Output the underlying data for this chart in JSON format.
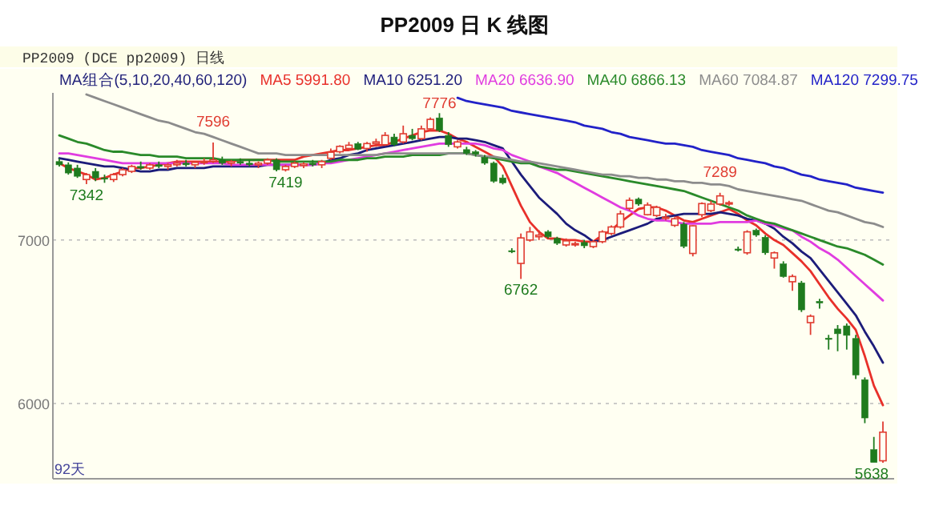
{
  "chart_data": {
    "type": "candlestick",
    "title": "PP2009 日 K 线图",
    "subtitle": "PP2009  (DCE pp2009)  日线",
    "legend_title": "MA组合(5,10,20,40,60,120)",
    "legend": "top",
    "grid": "y",
    "categories": [
      null,
      null,
      null,
      null,
      null,
      null,
      null,
      null,
      null,
      null,
      null,
      null,
      null,
      null,
      null,
      null,
      null,
      null,
      null,
      null,
      null,
      null,
      null,
      null,
      null,
      null,
      null,
      null,
      null,
      null,
      null,
      null,
      null,
      null,
      null,
      null,
      null,
      null,
      null,
      null,
      null,
      null,
      null,
      null,
      null,
      null,
      null,
      null,
      null,
      null,
      null,
      null,
      null,
      null,
      null,
      null,
      null,
      null,
      null,
      null,
      null,
      null,
      null,
      null,
      null,
      null,
      null,
      null,
      null,
      null,
      null,
      null,
      null,
      null,
      null,
      null,
      null,
      null,
      null,
      null,
      null,
      null,
      null,
      null,
      null,
      null,
      null,
      null,
      null,
      null,
      null,
      null
    ],
    "ohlc": [
      [
        7480,
        7500,
        7450,
        7460
      ],
      [
        7460,
        7475,
        7400,
        7410
      ],
      [
        7440,
        7460,
        7380,
        7390
      ],
      [
        7370,
        7410,
        7342,
        7400
      ],
      [
        7420,
        7440,
        7360,
        7380
      ],
      [
        7380,
        7400,
        7350,
        7375
      ],
      [
        7370,
        7410,
        7355,
        7400
      ],
      [
        7400,
        7440,
        7390,
        7430
      ],
      [
        7420,
        7460,
        7410,
        7450
      ],
      [
        7450,
        7480,
        7430,
        7440
      ],
      [
        7440,
        7470,
        7430,
        7460
      ],
      [
        7460,
        7480,
        7440,
        7450
      ],
      [
        7450,
        7470,
        7430,
        7460
      ],
      [
        7460,
        7490,
        7450,
        7470
      ],
      [
        7470,
        7490,
        7450,
        7460
      ],
      [
        7460,
        7480,
        7440,
        7475
      ],
      [
        7475,
        7500,
        7460,
        7480
      ],
      [
        7480,
        7596,
        7470,
        7490
      ],
      [
        7490,
        7510,
        7460,
        7470
      ],
      [
        7470,
        7490,
        7450,
        7480
      ],
      [
        7480,
        7500,
        7460,
        7470
      ],
      [
        7470,
        7490,
        7450,
        7460
      ],
      [
        7460,
        7480,
        7440,
        7470
      ],
      [
        7470,
        7500,
        7460,
        7490
      ],
      [
        7490,
        7500,
        7420,
        7430
      ],
      [
        7430,
        7460,
        7419,
        7450
      ],
      [
        7450,
        7480,
        7440,
        7470
      ],
      [
        7455,
        7475,
        7440,
        7465
      ],
      [
        7470,
        7490,
        7450,
        7460
      ],
      [
        7460,
        7490,
        7440,
        7480
      ],
      [
        7500,
        7560,
        7490,
        7537
      ],
      [
        7540,
        7580,
        7530,
        7573
      ],
      [
        7560,
        7600,
        7550,
        7580
      ],
      [
        7590,
        7600,
        7550,
        7555
      ],
      [
        7560,
        7600,
        7540,
        7590
      ],
      [
        7590,
        7620,
        7570,
        7600
      ],
      [
        7583,
        7660,
        7575,
        7640
      ],
      [
        7630,
        7650,
        7575,
        7583
      ],
      [
        7600,
        7700,
        7590,
        7650
      ],
      [
        7640,
        7680,
        7610,
        7620
      ],
      [
        7620,
        7700,
        7610,
        7680
      ],
      [
        7680,
        7750,
        7670,
        7738
      ],
      [
        7747,
        7776,
        7660,
        7670
      ],
      [
        7640,
        7660,
        7570,
        7583
      ],
      [
        7570,
        7610,
        7560,
        7600
      ],
      [
        7553,
        7570,
        7520,
        7530
      ],
      [
        7540,
        7550,
        7510,
        7525
      ],
      [
        7505,
        7520,
        7460,
        7470
      ],
      [
        7470,
        7480,
        7350,
        7360
      ],
      [
        7380,
        7400,
        7340,
        7350
      ],
      [
        6935,
        6950,
        6920,
        6932
      ],
      [
        6857,
        7040,
        6762,
        7013
      ],
      [
        7000,
        7080,
        6990,
        7050
      ],
      [
        7020,
        7060,
        7000,
        7030
      ],
      [
        7050,
        7060,
        7010,
        7020
      ],
      [
        7010,
        7020,
        6970,
        6980
      ],
      [
        6970,
        7010,
        6960,
        6995
      ],
      [
        6975,
        6990,
        6960,
        6978
      ],
      [
        6985,
        7000,
        6950,
        6965
      ],
      [
        6960,
        7000,
        6950,
        6990
      ],
      [
        6990,
        7060,
        6980,
        7050
      ],
      [
        7040,
        7090,
        7030,
        7080
      ],
      [
        7080,
        7180,
        7070,
        7160
      ],
      [
        7194,
        7260,
        7180,
        7243
      ],
      [
        7250,
        7260,
        7210,
        7220
      ],
      [
        7155,
        7230,
        7150,
        7214
      ],
      [
        7150,
        7210,
        7140,
        7200
      ],
      [
        7138,
        7160,
        7120,
        7140
      ],
      [
        7090,
        7140,
        7080,
        7130
      ],
      [
        7097,
        7110,
        6950,
        6961
      ],
      [
        6918,
        7090,
        6900,
        7087
      ],
      [
        7155,
        7230,
        7140,
        7223
      ],
      [
        7180,
        7240,
        7170,
        7220
      ],
      [
        7220,
        7289,
        7210,
        7270
      ],
      [
        7220,
        7240,
        7210,
        7228
      ],
      [
        6945,
        6960,
        6930,
        6942
      ],
      [
        6922,
        7060,
        6910,
        7050
      ],
      [
        7060,
        7070,
        7020,
        7030
      ],
      [
        7017,
        7030,
        6910,
        6922
      ],
      [
        6890,
        6930,
        6825,
        6922
      ],
      [
        6854,
        6870,
        6770,
        6777
      ],
      [
        6745,
        6790,
        6690,
        6777
      ],
      [
        6738,
        6750,
        6560,
        6573
      ],
      [
        6495,
        6545,
        6420,
        6534
      ],
      [
        6625,
        6640,
        6580,
        6615
      ],
      [
        6400,
        6420,
        6330,
        6398
      ],
      [
        6456,
        6480,
        6320,
        6427
      ],
      [
        6475,
        6490,
        6330,
        6417
      ],
      [
        6398,
        6420,
        6150,
        6175
      ],
      [
        6146,
        6160,
        5880,
        5912
      ],
      [
        5718,
        5796,
        5640,
        5640
      ],
      [
        5650,
        5890,
        5638,
        5825
      ]
    ],
    "series": [
      {
        "name": "MA5 5991.80",
        "color": "#e8302a",
        "type": "line",
        "values": [
          7470,
          7440,
          7420,
          7400,
          7370,
          7380,
          7400,
          7420,
          7440,
          7440,
          7450,
          7460,
          7470,
          7480,
          7480,
          7480,
          7480,
          7480,
          7480,
          7480,
          7490,
          7490,
          7490,
          7490,
          7490,
          7490,
          7490,
          7510,
          7520,
          7530,
          7540,
          7550,
          7550,
          7560,
          7570,
          7580,
          7580,
          7600,
          7620,
          7640,
          7660,
          7670,
          7670,
          7650,
          7620,
          7600,
          7570,
          7540,
          7510,
          7450,
          7330,
          7210,
          7110,
          7050,
          7010,
          7010,
          7000,
          7000,
          6990,
          6990,
          7030,
          7060,
          7110,
          7150,
          7190,
          7200,
          7200,
          7180,
          7150,
          7120,
          7110,
          7130,
          7150,
          7170,
          7190,
          7160,
          7120,
          7090,
          7040,
          7000,
          6970,
          6920,
          6870,
          6810,
          6730,
          6650,
          6580,
          6520,
          6450,
          6290,
          6110,
          5990
        ]
      },
      {
        "name": "MA10 6251.20",
        "color": "#1c1c7a",
        "type": "line",
        "values": [
          7500,
          7490,
          7480,
          7470,
          7460,
          7450,
          7450,
          7440,
          7430,
          7420,
          7420,
          7430,
          7430,
          7440,
          7440,
          7440,
          7440,
          7450,
          7450,
          7450,
          7450,
          7450,
          7450,
          7460,
          7460,
          7460,
          7460,
          7460,
          7460,
          7470,
          7490,
          7500,
          7520,
          7530,
          7550,
          7560,
          7570,
          7580,
          7590,
          7600,
          7610,
          7620,
          7630,
          7630,
          7620,
          7620,
          7610,
          7600,
          7580,
          7560,
          7480,
          7400,
          7330,
          7260,
          7210,
          7160,
          7100,
          7060,
          7030,
          6990,
          7000,
          7020,
          7040,
          7060,
          7080,
          7100,
          7130,
          7140,
          7150,
          7160,
          7160,
          7160,
          7160,
          7170,
          7160,
          7150,
          7130,
          7120,
          7100,
          7070,
          7020,
          6980,
          6930,
          6890,
          6820,
          6750,
          6680,
          6610,
          6540,
          6440,
          6350,
          6250
        ]
      },
      {
        "name": "MA20 6636.90",
        "color": "#e03ce0",
        "type": "line",
        "values": [
          7530,
          7530,
          7520,
          7510,
          7500,
          7490,
          7480,
          7470,
          7470,
          7470,
          7470,
          7470,
          7470,
          7470,
          7470,
          7470,
          7470,
          7470,
          7470,
          7460,
          7460,
          7460,
          7460,
          7460,
          7460,
          7460,
          7460,
          7460,
          7460,
          7470,
          7470,
          7480,
          7490,
          7500,
          7510,
          7520,
          7530,
          7540,
          7550,
          7560,
          7570,
          7580,
          7590,
          7590,
          7590,
          7590,
          7590,
          7580,
          7560,
          7550,
          7520,
          7500,
          7480,
          7450,
          7430,
          7410,
          7380,
          7350,
          7320,
          7290,
          7260,
          7230,
          7200,
          7180,
          7150,
          7130,
          7120,
          7120,
          7110,
          7100,
          7100,
          7100,
          7100,
          7110,
          7110,
          7110,
          7110,
          7120,
          7100,
          7090,
          7070,
          7060,
          7020,
          6990,
          6950,
          6920,
          6880,
          6830,
          6780,
          6730,
          6680,
          6630
        ]
      },
      {
        "name": "MA40 6866.13",
        "color": "#2a8a2a",
        "type": "line",
        "values": [
          7640,
          7620,
          7600,
          7590,
          7570,
          7550,
          7540,
          7540,
          7530,
          7520,
          7520,
          7510,
          7510,
          7510,
          7500,
          7500,
          7500,
          7500,
          7490,
          7490,
          7490,
          7490,
          7490,
          7490,
          7480,
          7480,
          7480,
          7480,
          7480,
          7480,
          7480,
          7490,
          7490,
          7490,
          7500,
          7500,
          7510,
          7510,
          7510,
          7520,
          7520,
          7520,
          7520,
          7530,
          7530,
          7530,
          7520,
          7510,
          7500,
          7490,
          7480,
          7470,
          7470,
          7450,
          7440,
          7430,
          7430,
          7420,
          7410,
          7400,
          7390,
          7380,
          7370,
          7360,
          7350,
          7340,
          7330,
          7320,
          7310,
          7300,
          7280,
          7260,
          7240,
          7220,
          7200,
          7180,
          7150,
          7130,
          7110,
          7100,
          7080,
          7060,
          7040,
          7020,
          7000,
          6980,
          6960,
          6950,
          6930,
          6910,
          6880,
          6850
        ]
      },
      {
        "name": "MA60 7084.87",
        "color": "#8c8c8c",
        "type": "line",
        "values": [
          null,
          null,
          null,
          7890,
          7870,
          7850,
          7830,
          7810,
          7790,
          7770,
          7750,
          7730,
          7720,
          7700,
          7680,
          7660,
          7650,
          7630,
          7610,
          7590,
          7570,
          7550,
          7530,
          7530,
          7530,
          7520,
          7520,
          7520,
          7520,
          7520,
          7520,
          7520,
          7520,
          7520,
          7520,
          7520,
          7530,
          7530,
          7530,
          7530,
          7530,
          7530,
          7530,
          7530,
          7530,
          7530,
          7520,
          7510,
          7510,
          7500,
          7490,
          7480,
          7480,
          7470,
          7460,
          7450,
          7440,
          7430,
          7420,
          7410,
          7400,
          7400,
          7390,
          7390,
          7380,
          7380,
          7370,
          7370,
          7360,
          7360,
          7350,
          7350,
          7340,
          7340,
          7330,
          7310,
          7300,
          7290,
          7280,
          7270,
          7260,
          7250,
          7240,
          7220,
          7200,
          7180,
          7170,
          7150,
          7130,
          7110,
          7100,
          7080
        ]
      },
      {
        "name": "MA120 7299.75",
        "color": "#2222c8",
        "type": "line",
        "values": [
          null,
          null,
          null,
          null,
          null,
          null,
          null,
          null,
          null,
          null,
          null,
          null,
          null,
          null,
          null,
          null,
          null,
          null,
          null,
          null,
          null,
          null,
          null,
          null,
          null,
          null,
          null,
          null,
          null,
          null,
          null,
          null,
          null,
          null,
          null,
          null,
          null,
          null,
          null,
          null,
          null,
          null,
          null,
          null,
          7870,
          7850,
          7840,
          7830,
          7820,
          7810,
          7790,
          7780,
          7770,
          7760,
          7750,
          7740,
          7730,
          7720,
          7700,
          7690,
          7680,
          7660,
          7650,
          7630,
          7620,
          7610,
          7600,
          7590,
          7590,
          7580,
          7570,
          7550,
          7540,
          7530,
          7520,
          7500,
          7490,
          7480,
          7470,
          7450,
          7440,
          7420,
          7400,
          7390,
          7370,
          7360,
          7350,
          7340,
          7320,
          7310,
          7300,
          7290
        ]
      }
    ],
    "ylim": [
      5540,
      7900
    ],
    "yticks": [
      6000,
      7000
    ],
    "annotations": [
      {
        "text": "7342",
        "y": 7342
      },
      {
        "text": "7596",
        "y": 7596
      },
      {
        "text": "7419",
        "y": 7419
      },
      {
        "text": "7776",
        "y": 7776
      },
      {
        "text": "6762",
        "y": 6762
      },
      {
        "text": "7289",
        "y": 7289
      },
      {
        "text": "5638",
        "y": 5638
      },
      "92天"
    ]
  }
}
